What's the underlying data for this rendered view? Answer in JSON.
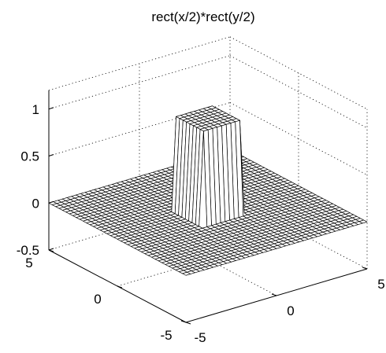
{
  "chart_data": {
    "type": "surface",
    "title": "rect(x/2)*rect(y/2)",
    "xlabel": "",
    "ylabel": "",
    "zlabel": "",
    "x_range": [
      -5,
      5
    ],
    "y_range": [
      -5,
      5
    ],
    "z_range": [
      -0.5,
      1.2
    ],
    "x_ticks": [
      -5,
      0,
      5
    ],
    "y_ticks": [
      -5,
      0,
      5
    ],
    "z_ticks": [
      -0.5,
      0,
      0.5,
      1
    ],
    "x_tick_labels": [
      "-5",
      "0",
      "5"
    ],
    "y_tick_labels": [
      "-5",
      "0",
      "5"
    ],
    "z_tick_labels": [
      "-0.5",
      "0",
      "0.5",
      "1"
    ],
    "grid": true,
    "function": "z = 1 if |x| <= 1 and |y| <= 1, else 0",
    "mesh_color": "#000000",
    "face_color": "#ffffff"
  }
}
